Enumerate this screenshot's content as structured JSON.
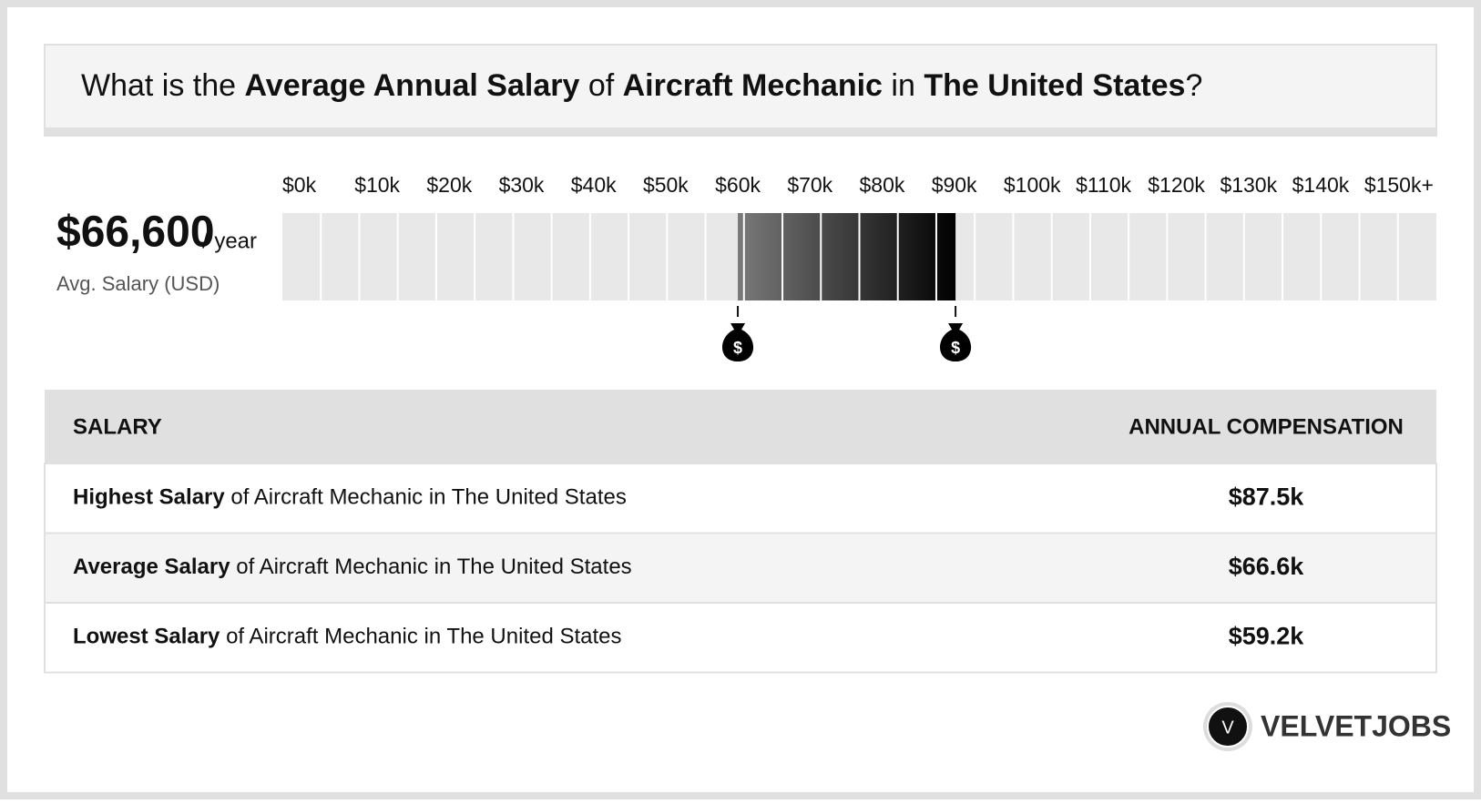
{
  "header": {
    "title_parts": [
      {
        "text": "What is the ",
        "bold": false
      },
      {
        "text": "Average Annual Salary",
        "bold": true
      },
      {
        "text": " of ",
        "bold": false
      },
      {
        "text": "Aircraft Mechanic",
        "bold": true
      },
      {
        "text": " in ",
        "bold": false
      },
      {
        "text": "The United States",
        "bold": true
      },
      {
        "text": "?",
        "bold": false
      }
    ]
  },
  "summary": {
    "amount": "$66,600",
    "period": "/ year",
    "caption": "Avg. Salary (USD)"
  },
  "chart_data": {
    "type": "range",
    "xlim": [
      0,
      150
    ],
    "xticks": [
      {
        "value": 0,
        "label": "$0k"
      },
      {
        "value": 10,
        "label": "$10k"
      },
      {
        "value": 20,
        "label": "$20k"
      },
      {
        "value": 30,
        "label": "$30k"
      },
      {
        "value": 40,
        "label": "$40k"
      },
      {
        "value": 50,
        "label": "$50k"
      },
      {
        "value": 60,
        "label": "$60k"
      },
      {
        "value": 70,
        "label": "$70k"
      },
      {
        "value": 80,
        "label": "$80k"
      },
      {
        "value": 90,
        "label": "$90k"
      },
      {
        "value": 100,
        "label": "$100k"
      },
      {
        "value": 110,
        "label": "$110k"
      },
      {
        "value": 120,
        "label": "$120k"
      },
      {
        "value": 130,
        "label": "$130k"
      },
      {
        "value": 140,
        "label": "$140k"
      },
      {
        "value": 150,
        "label": "$150k+"
      }
    ],
    "values": [
      59.2,
      87.5
    ]
  },
  "table": {
    "header": [
      "SALARY",
      "ANNUAL COMPENSATION"
    ],
    "rows": [
      [
        "Highest Salary",
        " of Aircraft Mechanic in The United States",
        "$87.5k"
      ],
      [
        "Average Salary",
        " of Aircraft Mechanic in The United States",
        "$66.6k"
      ],
      [
        "Lowest Salary",
        " of Aircraft Mechanic in The United States",
        "$59.2k"
      ]
    ]
  },
  "logo": {
    "letter": "V",
    "name": "VELVETJOBS"
  }
}
